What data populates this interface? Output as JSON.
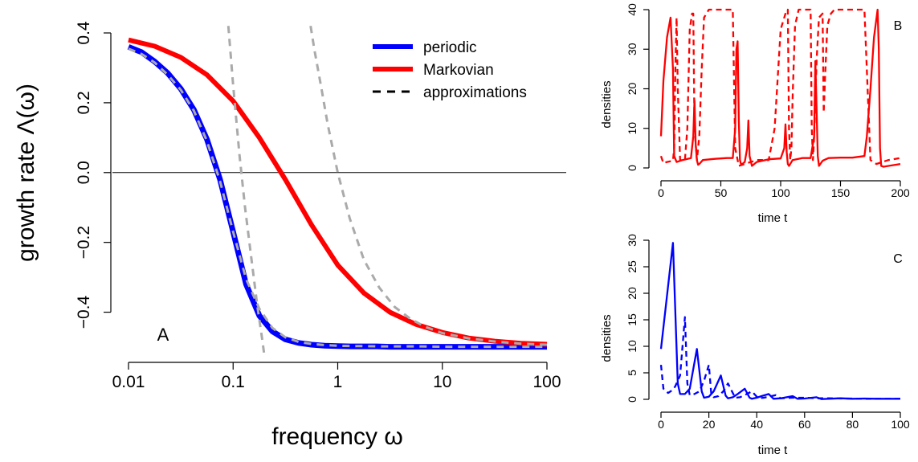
{
  "chart_data": [
    {
      "panel": "A",
      "type": "line",
      "xscale": "log",
      "xlabel": "frequency ω",
      "ylabel": "growth rate Λ(ω)",
      "xlim": [
        0.01,
        100
      ],
      "ylim": [
        -0.5,
        0.4
      ],
      "xticks": [
        0.01,
        0.1,
        1,
        10,
        100
      ],
      "xtick_labels": [
        "0.01",
        "0.1",
        "1",
        "10",
        "100"
      ],
      "yticks": [
        -0.4,
        -0.2,
        0.0,
        0.2,
        0.4
      ],
      "ytick_labels": [
        "−0.4",
        "−0.2",
        "0.0",
        "0.2",
        "0.4"
      ],
      "hline": 0,
      "legend": {
        "position": "top-right",
        "entries": [
          {
            "label": "periodic",
            "color": "#0000ff",
            "style": "solid"
          },
          {
            "label": "Markovian",
            "color": "#ff0000",
            "style": "solid"
          },
          {
            "label": "approximations",
            "color": "#000000",
            "style": "dashed"
          }
        ]
      },
      "series": [
        {
          "name": "periodic",
          "color": "#0000ff",
          "style": "solid",
          "x": [
            0.01,
            0.0133,
            0.0178,
            0.0237,
            0.0316,
            0.0422,
            0.0562,
            0.075,
            0.1,
            0.133,
            0.178,
            0.237,
            0.316,
            0.422,
            0.562,
            0.75,
            1,
            1.33,
            1.78,
            2.37,
            3.16,
            5.62,
            10,
            17.8,
            31.6,
            56.2,
            100
          ],
          "y": [
            0.36,
            0.345,
            0.318,
            0.285,
            0.24,
            0.18,
            0.095,
            -0.02,
            -0.17,
            -0.32,
            -0.41,
            -0.455,
            -0.478,
            -0.488,
            -0.493,
            -0.496,
            -0.497,
            -0.498,
            -0.498,
            -0.498,
            -0.499,
            -0.499,
            -0.499,
            -0.499,
            -0.499,
            -0.499,
            -0.499
          ]
        },
        {
          "name": "Markovian",
          "color": "#ff0000",
          "style": "solid",
          "x": [
            0.01,
            0.0178,
            0.0316,
            0.0562,
            0.1,
            0.178,
            0.316,
            0.562,
            1,
            1.78,
            3.16,
            5.62,
            10,
            17.8,
            31.6,
            56.2,
            100
          ],
          "y": [
            0.38,
            0.362,
            0.33,
            0.28,
            0.205,
            0.1,
            -0.02,
            -0.15,
            -0.265,
            -0.345,
            -0.4,
            -0.435,
            -0.458,
            -0.474,
            -0.483,
            -0.489,
            -0.492
          ]
        },
        {
          "name": "periodic approximation",
          "color": "#aaaaaa",
          "style": "dashed",
          "x": [
            0.01,
            0.0133,
            0.0178,
            0.0237,
            0.0316,
            0.0422,
            0.0562,
            0.075,
            0.1,
            0.133,
            0.178,
            0.237,
            0.316,
            0.422,
            0.562,
            0.75,
            1,
            1.33,
            1.78,
            2.37,
            3.16,
            5.62,
            10,
            17.8,
            31.6,
            56.2,
            100
          ],
          "y": [
            0.355,
            0.34,
            0.315,
            0.28,
            0.237,
            0.177,
            0.09,
            -0.025,
            -0.17,
            -0.305,
            -0.39,
            -0.445,
            -0.472,
            -0.485,
            -0.491,
            -0.494,
            -0.496,
            -0.497,
            -0.497,
            -0.498,
            -0.498,
            -0.498,
            -0.499,
            -0.499,
            -0.499,
            -0.499,
            -0.499
          ]
        },
        {
          "name": "periodic limit approximation",
          "color": "#aaaaaa",
          "style": "dashed",
          "x": [
            0.09,
            0.1,
            0.115,
            0.13,
            0.15,
            0.17,
            0.19,
            0.2
          ],
          "y": [
            0.42,
            0.25,
            0.05,
            -0.1,
            -0.25,
            -0.38,
            -0.48,
            -0.53
          ]
        },
        {
          "name": "Markovian approximation",
          "color": "#aaaaaa",
          "style": "dashed",
          "x": [
            0.55,
            0.6,
            0.7,
            0.8,
            1,
            1.3,
            1.78,
            2.5,
            3.5,
            5,
            7,
            10,
            17.8,
            31.6,
            56.2,
            100
          ],
          "y": [
            0.42,
            0.35,
            0.24,
            0.14,
            0.0,
            -0.13,
            -0.25,
            -0.33,
            -0.385,
            -0.42,
            -0.443,
            -0.46,
            -0.475,
            -0.484,
            -0.49,
            -0.493
          ]
        }
      ]
    },
    {
      "panel": "B",
      "type": "line",
      "xlabel": "time t",
      "ylabel": "densities",
      "xlim": [
        0,
        200
      ],
      "ylim": [
        0,
        40
      ],
      "xticks": [
        0,
        50,
        100,
        150,
        200
      ],
      "yticks": [
        0,
        10,
        20,
        30,
        40
      ],
      "series": [
        {
          "name": "solid",
          "color": "#ff0000",
          "style": "solid",
          "x": [
            0,
            2,
            5,
            8,
            10,
            11,
            13,
            18,
            25,
            27,
            28,
            29,
            30,
            31,
            32,
            35,
            45,
            55,
            60,
            62,
            63,
            64,
            65,
            66,
            67,
            70,
            72,
            73,
            74,
            76,
            80,
            90,
            100,
            103,
            104,
            105,
            106,
            107,
            110,
            118,
            125,
            128,
            129,
            130,
            131,
            132,
            135,
            140,
            150,
            160,
            170,
            172,
            175,
            178,
            181,
            182,
            183,
            184,
            186,
            190,
            200
          ],
          "y": [
            8,
            22,
            33,
            38,
            25,
            3,
            1.5,
            2,
            2.5,
            8,
            17,
            6,
            2,
            0.8,
            1,
            2,
            2.3,
            2.5,
            2.5,
            10,
            30,
            32,
            12,
            2,
            0.8,
            1.5,
            5,
            12,
            3,
            0.5,
            1.5,
            2.2,
            2.4,
            5,
            11,
            4,
            1,
            0.5,
            2,
            2.5,
            2.5,
            8,
            27,
            15,
            3,
            0.5,
            1.8,
            2.5,
            2.6,
            2.6,
            3,
            8,
            20,
            33,
            40,
            30,
            5,
            0.5,
            0.3,
            0.5,
            1
          ]
        },
        {
          "name": "dashed",
          "color": "#ff0000",
          "style": "dashed",
          "x": [
            0,
            2,
            5,
            10,
            11,
            12,
            13,
            14,
            16,
            20,
            22,
            24,
            26,
            27,
            28,
            30,
            32,
            34,
            36,
            40,
            45,
            50,
            55,
            60,
            62,
            65,
            70,
            75,
            80,
            90,
            95,
            100,
            105,
            106,
            107,
            108,
            109,
            110,
            112,
            115,
            120,
            125,
            126,
            127,
            128,
            130,
            132,
            135,
            136,
            137,
            139,
            142,
            145,
            150,
            155,
            160,
            165,
            170,
            175,
            180,
            185,
            190,
            200
          ],
          "y": [
            3,
            1.2,
            1.5,
            1.8,
            5,
            25,
            38,
            20,
            2,
            2,
            10,
            35,
            39,
            39,
            10,
            2,
            8,
            25,
            38,
            40,
            40,
            40,
            40,
            40,
            5,
            0.5,
            1,
            1.5,
            2,
            2,
            10,
            35,
            40,
            40,
            10,
            2,
            5,
            18,
            36,
            40,
            40,
            40,
            10,
            2,
            8,
            27,
            38,
            39,
            14,
            22,
            36,
            39,
            40,
            40,
            40,
            40,
            40,
            40,
            2,
            1,
            1.5,
            2,
            2.5
          ]
        }
      ]
    },
    {
      "panel": "C",
      "type": "line",
      "xlabel": "time t",
      "ylabel": "densities",
      "xlim": [
        0,
        100
      ],
      "ylim": [
        0,
        30
      ],
      "xticks": [
        0,
        20,
        40,
        60,
        80,
        100
      ],
      "yticks": [
        0,
        5,
        10,
        15,
        20,
        25,
        30
      ],
      "series": [
        {
          "name": "solid",
          "color": "#0000ff",
          "style": "solid",
          "x": [
            0,
            5,
            7,
            8,
            10,
            12,
            15,
            17,
            18,
            20,
            22,
            25,
            27,
            28,
            30,
            32,
            35,
            37,
            38,
            40,
            42,
            45,
            47,
            50,
            55,
            57,
            60,
            65,
            67,
            70,
            75,
            80,
            85,
            90,
            95,
            100
          ],
          "y": [
            9.5,
            29.5,
            3,
            1,
            1,
            2,
            9.5,
            1.5,
            0.3,
            0.5,
            1.5,
            4.5,
            0.7,
            0.2,
            0.4,
            1,
            2,
            0.3,
            0.1,
            0.3,
            0.6,
            1,
            0.1,
            0.2,
            0.6,
            0.1,
            0.15,
            0.4,
            0.05,
            0.1,
            0.2,
            0.1,
            0.15,
            0.1,
            0.1,
            0.1
          ]
        },
        {
          "name": "dashed",
          "color": "#0000ff",
          "style": "dashed",
          "x": [
            0,
            1,
            3,
            5,
            6,
            8,
            10,
            11,
            12,
            14,
            16,
            18,
            20,
            21,
            22,
            24,
            26,
            28,
            30,
            31,
            33,
            35,
            38,
            40,
            41,
            43,
            45,
            48,
            50,
            55,
            60,
            65,
            70,
            75,
            80,
            85,
            90,
            95,
            100
          ],
          "y": [
            6.5,
            2,
            1.2,
            1.8,
            2.5,
            4.5,
            15.5,
            3,
            0.8,
            1,
            1.5,
            3.5,
            6.5,
            1,
            0.4,
            0.6,
            1.5,
            3,
            1.2,
            0.3,
            0.4,
            0.8,
            1.5,
            0.5,
            0.2,
            0.3,
            0.5,
            0.8,
            0.2,
            0.3,
            0.3,
            0.2,
            0.2,
            0.15,
            0.15,
            0.1,
            0.1,
            0.1,
            0.1
          ]
        }
      ]
    }
  ],
  "panel_labels": {
    "a": "A",
    "b": "B",
    "c": "C"
  }
}
